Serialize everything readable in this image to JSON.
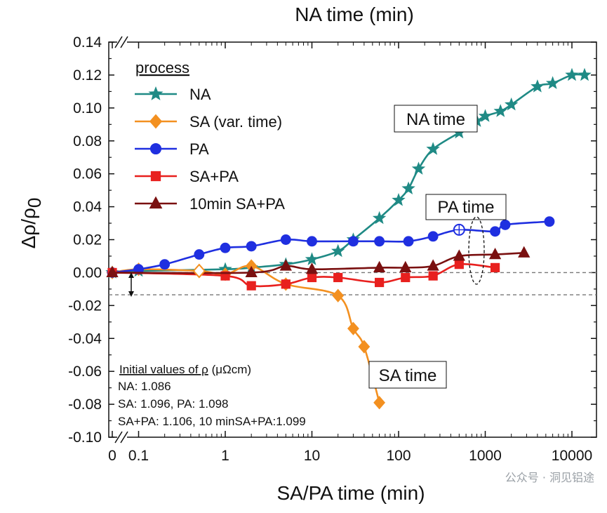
{
  "chart_data": {
    "type": "line",
    "top_title": "NA time (min)",
    "xlabel": "SA/PA time (min)",
    "ylabel": "Δρ/ρ",
    "ylabel_sub": "0",
    "x_scale": "log with broken axis (0 at left)",
    "ylim": [
      -0.1,
      0.14
    ],
    "xlim": [
      0.05,
      20000
    ],
    "y_ticks": [
      "0.14",
      "0.12",
      "0.10",
      "0.08",
      "0.06",
      "0.04",
      "0.02",
      "0.00",
      "-0.02",
      "-0.04",
      "-0.06",
      "-0.08",
      "-0.10"
    ],
    "x_ticks": [
      "0",
      "0.1",
      "1",
      "10",
      "100",
      "1000",
      "10000"
    ],
    "legend_title": "process",
    "legend": [
      "NA",
      "SA (var. time)",
      "PA",
      "SA+PA",
      "10min SA+PA"
    ],
    "colors": {
      "NA": "#1f8a85",
      "SA": "#f39020",
      "PA": "#1f2fe0",
      "SAPA": "#e8201e",
      "SA10PA": "#7a1010"
    },
    "series": [
      {
        "name": "NA",
        "marker": "star",
        "color": "#1f8a85",
        "x": [
          0,
          0.1,
          1,
          2,
          5,
          10,
          20,
          30,
          60,
          100,
          130,
          170,
          250,
          500,
          800,
          1000,
          1500,
          2000,
          4000,
          6000,
          10000,
          14000
        ],
        "y": [
          0.0,
          0.001,
          0.002,
          0.003,
          0.005,
          0.008,
          0.013,
          0.02,
          0.033,
          0.044,
          0.051,
          0.063,
          0.075,
          0.085,
          0.092,
          0.095,
          0.098,
          0.102,
          0.113,
          0.115,
          0.12,
          0.12
        ]
      },
      {
        "name": "SA (var. time)",
        "marker": "diamond",
        "color": "#f39020",
        "x": [
          0,
          0.1,
          0.5,
          1,
          2,
          5,
          20,
          30,
          40,
          60
        ],
        "y": [
          0.0,
          0.002,
          0.001,
          -0.001,
          0.004,
          -0.007,
          -0.014,
          -0.034,
          -0.045,
          -0.079
        ]
      },
      {
        "name": "PA",
        "marker": "circle",
        "color": "#1f2fe0",
        "x": [
          0,
          0.1,
          0.2,
          0.5,
          1,
          2,
          5,
          10,
          30,
          60,
          130,
          250,
          500,
          1300,
          1700,
          5500
        ],
        "y": [
          0.0,
          0.002,
          0.005,
          0.011,
          0.015,
          0.016,
          0.02,
          0.019,
          0.019,
          0.019,
          0.019,
          0.022,
          0.026,
          0.025,
          0.029,
          0.031
        ]
      },
      {
        "name": "SA+PA",
        "marker": "square",
        "color": "#e8201e",
        "x": [
          0,
          1,
          2,
          5,
          10,
          20,
          60,
          120,
          250,
          500,
          1300
        ],
        "y": [
          0.0,
          -0.002,
          -0.008,
          -0.007,
          -0.003,
          -0.003,
          -0.006,
          -0.003,
          -0.002,
          0.005,
          0.003
        ]
      },
      {
        "name": "10min SA+PA",
        "marker": "triangle",
        "color": "#7a1010",
        "x": [
          0,
          2,
          5,
          10,
          60,
          120,
          250,
          500,
          1300,
          2800
        ],
        "y": [
          0.0,
          0.0,
          0.004,
          0.002,
          0.003,
          0.003,
          0.004,
          0.01,
          0.011,
          0.012
        ]
      }
    ],
    "annotations": {
      "na_time": "NA time",
      "pa_time": "PA time",
      "sa_time": "SA time"
    },
    "note": {
      "heading": "Initial values of ρ",
      "heading_unit": " (μΩcm)",
      "line1": "NA: 1.086",
      "line2": "SA: 1.096, PA: 1.098",
      "line3": "SA+PA: 1.106, 10 minSA+PA:1.099"
    },
    "ref_lines": [
      0.0,
      -0.0135
    ]
  },
  "watermark": "公众号 · 洞见铝途"
}
